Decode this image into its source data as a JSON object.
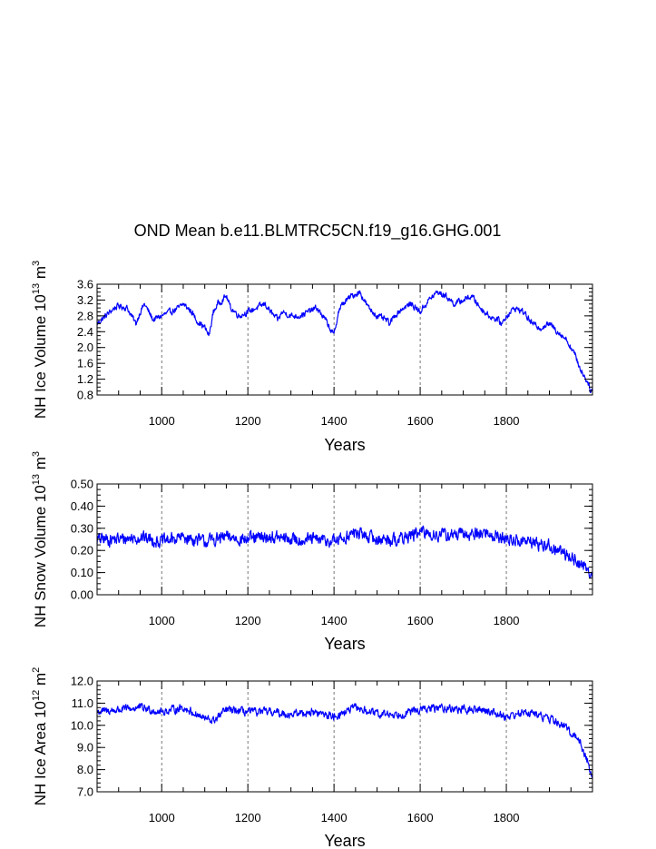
{
  "title": "OND Mean b.e11.BLMTRC5CN.f19_g16.GHG.001",
  "colors": {
    "line": "#0000ff",
    "axis": "#000000",
    "grid": "#555555"
  },
  "chart_data": [
    {
      "type": "line",
      "name": "ice-volume",
      "xlabel": "Years",
      "ylabel_parts": [
        "NH Ice Volume 10",
        "13",
        " m",
        "3"
      ],
      "xlim": [
        850,
        2000
      ],
      "ylim": [
        0.8,
        3.6
      ],
      "xticks": [
        1000,
        1200,
        1400,
        1600,
        1800
      ],
      "xtick_labels": [
        "1000",
        "1200",
        "1400",
        "1600",
        "1800"
      ],
      "yticks": [
        0.8,
        1.2,
        1.6,
        2.0,
        2.4,
        2.8,
        3.2,
        3.6
      ],
      "ytick_labels": [
        "0.8",
        "1.2",
        "1.6",
        "2.0",
        "2.4",
        "2.8",
        "3.2",
        "3.6"
      ],
      "yminor_step": 0.1,
      "x": [
        850,
        870,
        890,
        900,
        920,
        940,
        950,
        960,
        980,
        1000,
        1020,
        1040,
        1050,
        1070,
        1080,
        1090,
        1100,
        1110,
        1120,
        1130,
        1140,
        1150,
        1160,
        1180,
        1200,
        1220,
        1240,
        1260,
        1270,
        1280,
        1300,
        1320,
        1340,
        1360,
        1380,
        1400,
        1410,
        1420,
        1440,
        1460,
        1470,
        1480,
        1500,
        1520,
        1530,
        1540,
        1560,
        1580,
        1600,
        1620,
        1640,
        1660,
        1680,
        1700,
        1720,
        1740,
        1760,
        1780,
        1790,
        1800,
        1820,
        1840,
        1860,
        1880,
        1900,
        1920,
        1940,
        1960,
        1970,
        1980,
        1990,
        1995,
        2000
      ],
      "y": [
        2.6,
        2.8,
        3.0,
        3.05,
        3.0,
        2.6,
        2.9,
        3.1,
        2.7,
        2.8,
        2.9,
        3.0,
        3.1,
        2.9,
        2.7,
        2.6,
        2.5,
        2.3,
        2.9,
        3.1,
        3.2,
        3.3,
        3.0,
        2.8,
        2.9,
        3.0,
        3.1,
        2.8,
        2.7,
        2.9,
        2.8,
        2.8,
        2.9,
        3.0,
        2.7,
        2.3,
        2.9,
        3.1,
        3.3,
        3.4,
        3.2,
        3.0,
        2.8,
        2.7,
        2.6,
        2.8,
        3.0,
        3.1,
        2.9,
        3.2,
        3.4,
        3.3,
        3.1,
        3.2,
        3.3,
        3.0,
        2.8,
        2.7,
        2.6,
        2.8,
        3.0,
        2.9,
        2.6,
        2.5,
        2.6,
        2.4,
        2.2,
        1.8,
        1.5,
        1.3,
        1.1,
        0.95,
        0.9
      ],
      "noise": 0.12
    },
    {
      "type": "line",
      "name": "snow-volume",
      "xlabel": "Years",
      "ylabel_parts": [
        "NH Snow Volume 10",
        "13",
        " m",
        "3"
      ],
      "xlim": [
        850,
        2000
      ],
      "ylim": [
        0.0,
        0.5
      ],
      "xticks": [
        1000,
        1200,
        1400,
        1600,
        1800
      ],
      "xtick_labels": [
        "1000",
        "1200",
        "1400",
        "1600",
        "1800"
      ],
      "yticks": [
        0.0,
        0.1,
        0.2,
        0.3,
        0.4,
        0.5
      ],
      "ytick_labels": [
        "0.00",
        "0.10",
        "0.20",
        "0.30",
        "0.40",
        "0.50"
      ],
      "yminor_step": 0.025,
      "x": [
        850,
        900,
        950,
        1000,
        1050,
        1100,
        1150,
        1200,
        1250,
        1300,
        1350,
        1400,
        1450,
        1500,
        1550,
        1600,
        1650,
        1700,
        1750,
        1800,
        1850,
        1900,
        1920,
        1950,
        1970,
        1990,
        2000
      ],
      "y": [
        0.25,
        0.25,
        0.26,
        0.24,
        0.26,
        0.24,
        0.26,
        0.25,
        0.26,
        0.25,
        0.25,
        0.24,
        0.28,
        0.25,
        0.25,
        0.28,
        0.27,
        0.27,
        0.28,
        0.25,
        0.24,
        0.22,
        0.2,
        0.17,
        0.14,
        0.11,
        0.1
      ],
      "noise": 0.045
    },
    {
      "type": "line",
      "name": "ice-area",
      "xlabel": "Years",
      "ylabel_parts": [
        "NH Ice Area 10",
        "12",
        " m",
        "2"
      ],
      "xlim": [
        850,
        2000
      ],
      "ylim": [
        7.0,
        12.0
      ],
      "xticks": [
        1000,
        1200,
        1400,
        1600,
        1800
      ],
      "xtick_labels": [
        "1000",
        "1200",
        "1400",
        "1600",
        "1800"
      ],
      "yticks": [
        7.0,
        8.0,
        9.0,
        10.0,
        11.0,
        12.0
      ],
      "ytick_labels": [
        "7.0",
        "8.0",
        "9.0",
        "10.0",
        "11.0",
        "12.0"
      ],
      "yminor_step": 0.2,
      "x": [
        850,
        900,
        950,
        1000,
        1050,
        1100,
        1120,
        1150,
        1200,
        1250,
        1300,
        1350,
        1400,
        1450,
        1500,
        1550,
        1600,
        1650,
        1700,
        1750,
        1800,
        1850,
        1900,
        1930,
        1950,
        1970,
        1990,
        2000
      ],
      "y": [
        10.6,
        10.7,
        10.8,
        10.6,
        10.8,
        10.3,
        10.2,
        10.7,
        10.6,
        10.6,
        10.5,
        10.6,
        10.4,
        10.8,
        10.5,
        10.5,
        10.7,
        10.8,
        10.7,
        10.7,
        10.4,
        10.6,
        10.3,
        10.0,
        9.7,
        9.3,
        8.3,
        7.6
      ],
      "noise": 0.28
    }
  ]
}
